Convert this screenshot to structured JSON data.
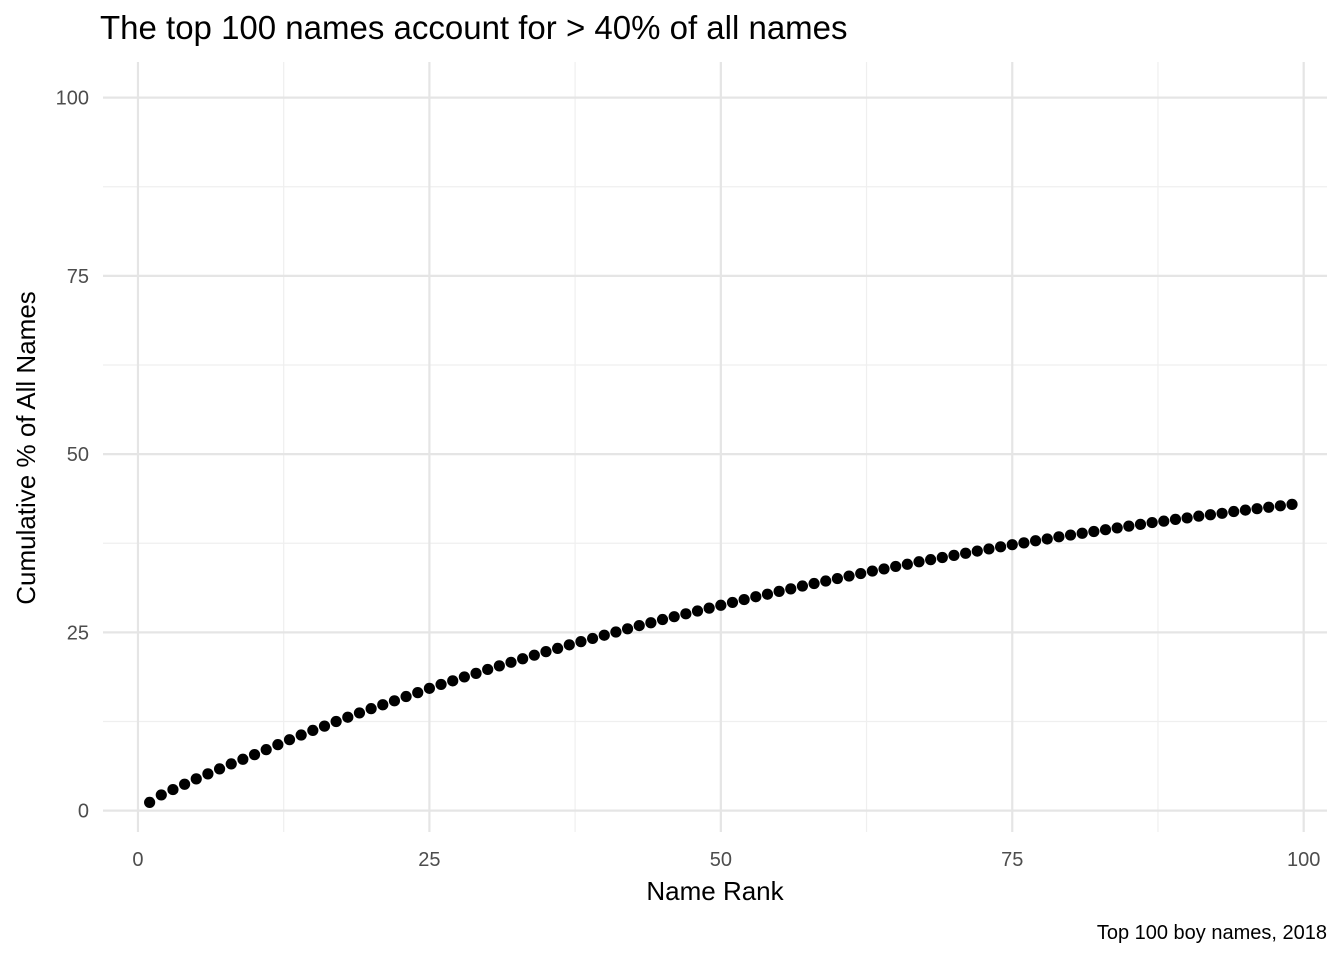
{
  "chart_data": {
    "type": "scatter",
    "title": "The top 100 names account for > 40% of all names",
    "xlabel": "Name Rank",
    "ylabel": "Cumulative % of All Names",
    "caption": "Top 100 boy names, 2018",
    "xlim": [
      -3,
      102
    ],
    "ylim": [
      -3,
      105
    ],
    "x_ticks": [
      0,
      25,
      50,
      75,
      100
    ],
    "x_tick_labels": [
      "0",
      "25",
      "50",
      "75",
      "100"
    ],
    "y_ticks": [
      0,
      25,
      50,
      75,
      100
    ],
    "y_tick_labels": [
      "0",
      "25",
      "50",
      "75",
      "100"
    ],
    "grid": true,
    "point_color": "#000000",
    "points": [
      [
        1,
        1.15
      ],
      [
        2,
        2.2
      ],
      [
        3,
        2.95
      ],
      [
        4,
        3.7
      ],
      [
        5,
        4.45
      ],
      [
        6,
        5.15
      ],
      [
        7,
        5.85
      ],
      [
        8,
        6.55
      ],
      [
        9,
        7.2
      ],
      [
        10,
        7.85
      ],
      [
        11,
        8.55
      ],
      [
        12,
        9.25
      ],
      [
        13,
        9.95
      ],
      [
        14,
        10.6
      ],
      [
        15,
        11.25
      ],
      [
        16,
        11.85
      ],
      [
        17,
        12.5
      ],
      [
        18,
        13.1
      ],
      [
        19,
        13.7
      ],
      [
        20,
        14.3
      ],
      [
        21,
        14.85
      ],
      [
        22,
        15.4
      ],
      [
        23,
        16.0
      ],
      [
        24,
        16.55
      ],
      [
        25,
        17.15
      ],
      [
        26,
        17.7
      ],
      [
        27,
        18.2
      ],
      [
        28,
        18.75
      ],
      [
        29,
        19.25
      ],
      [
        30,
        19.8
      ],
      [
        31,
        20.3
      ],
      [
        32,
        20.8
      ],
      [
        33,
        21.3
      ],
      [
        34,
        21.8
      ],
      [
        35,
        22.3
      ],
      [
        36,
        22.75
      ],
      [
        37,
        23.25
      ],
      [
        38,
        23.7
      ],
      [
        39,
        24.15
      ],
      [
        40,
        24.6
      ],
      [
        41,
        25.05
      ],
      [
        42,
        25.5
      ],
      [
        43,
        25.95
      ],
      [
        44,
        26.35
      ],
      [
        45,
        26.8
      ],
      [
        46,
        27.2
      ],
      [
        47,
        27.6
      ],
      [
        48,
        28.0
      ],
      [
        49,
        28.4
      ],
      [
        50,
        28.8
      ],
      [
        51,
        29.2
      ],
      [
        52,
        29.6
      ],
      [
        53,
        30.0
      ],
      [
        54,
        30.35
      ],
      [
        55,
        30.75
      ],
      [
        56,
        31.1
      ],
      [
        57,
        31.5
      ],
      [
        58,
        31.85
      ],
      [
        59,
        32.2
      ],
      [
        60,
        32.55
      ],
      [
        61,
        32.9
      ],
      [
        62,
        33.25
      ],
      [
        63,
        33.6
      ],
      [
        64,
        33.9
      ],
      [
        65,
        34.25
      ],
      [
        66,
        34.55
      ],
      [
        67,
        34.9
      ],
      [
        68,
        35.2
      ],
      [
        69,
        35.5
      ],
      [
        70,
        35.8
      ],
      [
        71,
        36.1
      ],
      [
        72,
        36.4
      ],
      [
        73,
        36.7
      ],
      [
        74,
        37.0
      ],
      [
        75,
        37.3
      ],
      [
        76,
        37.55
      ],
      [
        77,
        37.85
      ],
      [
        78,
        38.1
      ],
      [
        79,
        38.4
      ],
      [
        80,
        38.65
      ],
      [
        81,
        38.9
      ],
      [
        82,
        39.15
      ],
      [
        83,
        39.4
      ],
      [
        84,
        39.65
      ],
      [
        85,
        39.9
      ],
      [
        86,
        40.15
      ],
      [
        87,
        40.4
      ],
      [
        88,
        40.6
      ],
      [
        89,
        40.85
      ],
      [
        90,
        41.05
      ],
      [
        91,
        41.3
      ],
      [
        92,
        41.5
      ],
      [
        93,
        41.7
      ],
      [
        94,
        41.95
      ],
      [
        95,
        42.15
      ],
      [
        96,
        42.35
      ],
      [
        97,
        42.55
      ],
      [
        98,
        42.75
      ],
      [
        99,
        42.95
      ]
    ]
  }
}
